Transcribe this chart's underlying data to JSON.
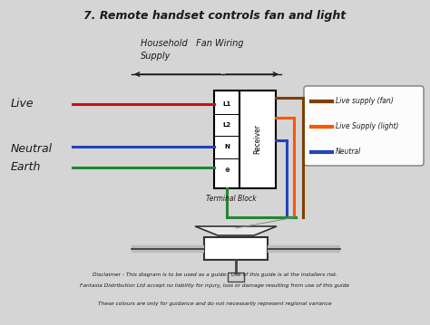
{
  "title": "7. Remote handset controls fan and light",
  "bg_color": "#d5d5d5",
  "text_color": "#1a1a1a",
  "legend_items": [
    {
      "label": "Live supply (fan)",
      "color": "#7B3F00"
    },
    {
      "label": "Live Supply (light)",
      "color": "#FF5500"
    },
    {
      "label": "Neutral",
      "color": "#2244BB"
    }
  ],
  "disclaimer1": "Disclaimer - This diagram is to be used as a guide.  Use of this guide is at the installers risk.",
  "disclaimer2": "Fantasia Distribution Ltd accept no liability for injury, loss or damage resulting from use of this guide",
  "disclaimer3": "These colours are only for guidance and do not necessarily represent regional variance",
  "wire_red": "#CC1111",
  "wire_blue": "#2244BB",
  "wire_green": "#228833",
  "wire_brown": "#7B3F00",
  "wire_orange": "#FF5500"
}
